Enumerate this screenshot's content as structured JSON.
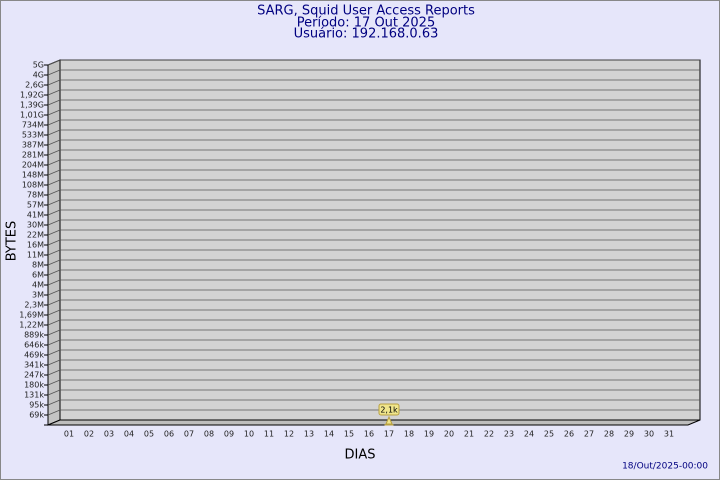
{
  "chart_data": {
    "type": "bar",
    "title": "SARG, Squid User Access Reports",
    "subtitle": "Período: 17 Out 2025",
    "subtitle2": "Usuário: 192.168.0.63",
    "ylabel": "BYTES",
    "xlabel": "DIAS",
    "footer": "18/Out/2025-00:00",
    "color": "#f0e68c",
    "grid": true,
    "categories": [
      "01",
      "02",
      "03",
      "04",
      "05",
      "06",
      "07",
      "08",
      "09",
      "10",
      "11",
      "12",
      "13",
      "14",
      "15",
      "16",
      "17",
      "18",
      "19",
      "20",
      "21",
      "22",
      "23",
      "24",
      "25",
      "26",
      "27",
      "28",
      "29",
      "30",
      "31"
    ],
    "values": [
      null,
      null,
      null,
      null,
      null,
      null,
      null,
      null,
      null,
      null,
      null,
      null,
      null,
      null,
      null,
      null,
      2100,
      null,
      null,
      null,
      null,
      null,
      null,
      null,
      null,
      null,
      null,
      null,
      null,
      null,
      null
    ],
    "value_labels": [
      null,
      null,
      null,
      null,
      null,
      null,
      null,
      null,
      null,
      null,
      null,
      null,
      null,
      null,
      null,
      null,
      "2,1k",
      null,
      null,
      null,
      null,
      null,
      null,
      null,
      null,
      null,
      null,
      null,
      null,
      null,
      null
    ],
    "ylim": [
      0,
      5000000000
    ],
    "yticks": [
      {
        "value": 69000,
        "label": "69k"
      },
      {
        "value": 95000,
        "label": "95k"
      },
      {
        "value": 131000,
        "label": "131k"
      },
      {
        "value": 180000,
        "label": "180k"
      },
      {
        "value": 247000,
        "label": "247k"
      },
      {
        "value": 341000,
        "label": "341k"
      },
      {
        "value": 469000,
        "label": "469k"
      },
      {
        "value": 646000,
        "label": "646k"
      },
      {
        "value": 889000,
        "label": "889k"
      },
      {
        "value": 1220000,
        "label": "1,22M"
      },
      {
        "value": 1690000,
        "label": "1,69M"
      },
      {
        "value": 2300000,
        "label": "2,3M"
      },
      {
        "value": 3000000,
        "label": "3M"
      },
      {
        "value": 4000000,
        "label": "4M"
      },
      {
        "value": 6000000,
        "label": "6M"
      },
      {
        "value": 8000000,
        "label": "8M"
      },
      {
        "value": 11000000,
        "label": "11M"
      },
      {
        "value": 16000000,
        "label": "16M"
      },
      {
        "value": 22000000,
        "label": "22M"
      },
      {
        "value": 30000000,
        "label": "30M"
      },
      {
        "value": 41000000,
        "label": "41M"
      },
      {
        "value": 57000000,
        "label": "57M"
      },
      {
        "value": 78000000,
        "label": "78M"
      },
      {
        "value": 108000000,
        "label": "108M"
      },
      {
        "value": 148000000,
        "label": "148M"
      },
      {
        "value": 204000000,
        "label": "204M"
      },
      {
        "value": 281000000,
        "label": "281M"
      },
      {
        "value": 387000000,
        "label": "387M"
      },
      {
        "value": 533000000,
        "label": "533M"
      },
      {
        "value": 734000000,
        "label": "734M"
      },
      {
        "value": 1010000000,
        "label": "1,01G"
      },
      {
        "value": 1390000000,
        "label": "1,39G"
      },
      {
        "value": 1920000000,
        "label": "1,92G"
      },
      {
        "value": 2600000000,
        "label": "2,6G"
      },
      {
        "value": 4000000000,
        "label": "4G"
      },
      {
        "value": 5000000000,
        "label": "5G"
      }
    ]
  }
}
